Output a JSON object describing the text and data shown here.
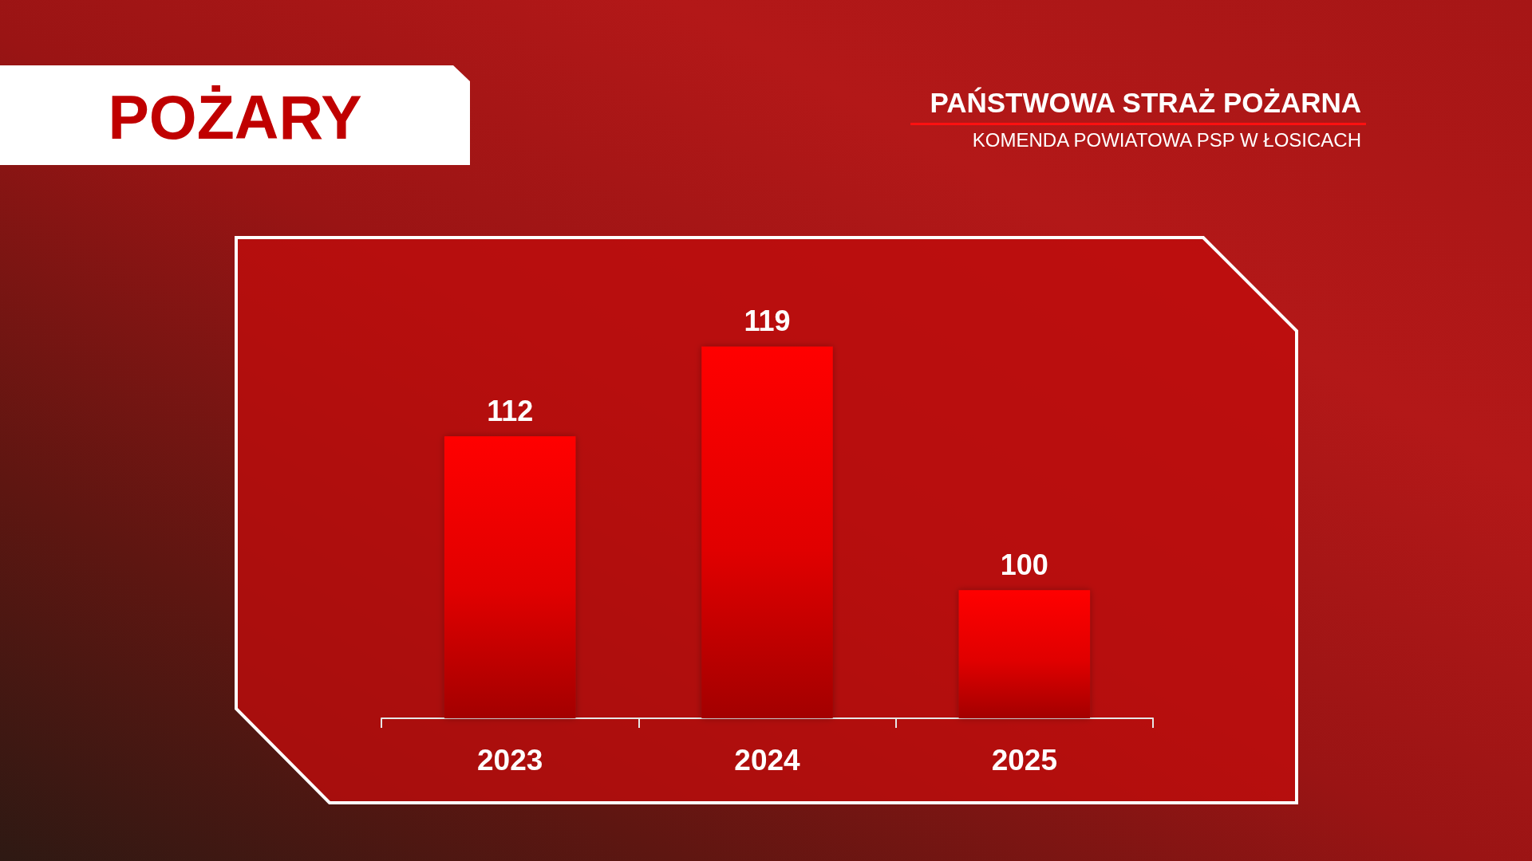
{
  "chart_data": {
    "type": "bar",
    "title": "POŻARY",
    "subtitle": "PAŃSTWOWA STRAŻ POŻARNA",
    "annotations": [
      "KOMENDA POWIATOWA PSP W ŁOSICACH"
    ],
    "categories": [
      "2023",
      "2024",
      "2025"
    ],
    "values": [
      112,
      119,
      100
    ],
    "color": "#ff0000",
    "ylim": [
      90,
      127.5
    ],
    "tick_labels": "x",
    "data_labels": true
  }
}
